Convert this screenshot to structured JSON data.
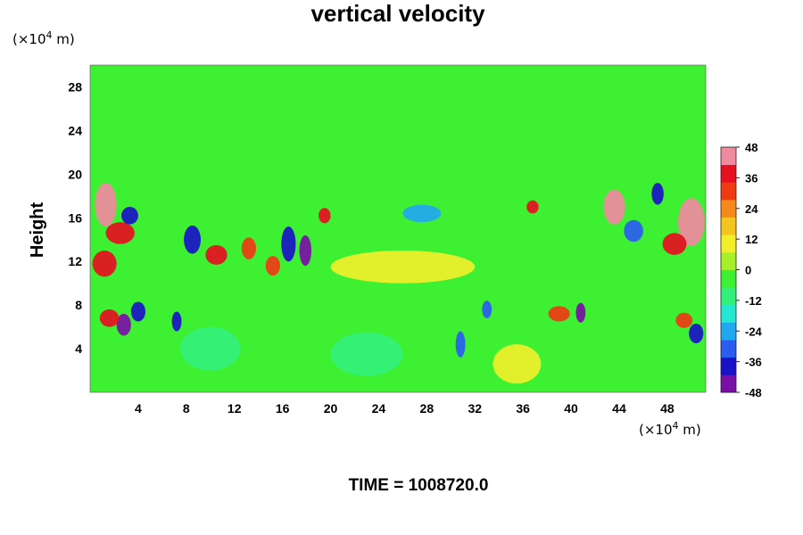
{
  "chart_data": {
    "type": "heatmap",
    "title": "vertical velocity",
    "xlabel": "",
    "ylabel": "Height",
    "x_unit": {
      "prefix": "(×10",
      "exp": "4",
      "suffix": " m)"
    },
    "y_unit": {
      "prefix": "(×10",
      "exp": "4",
      "suffix": " m)"
    },
    "xlim": [
      0,
      51.2
    ],
    "ylim": [
      0,
      30
    ],
    "x_ticks": [
      4,
      8,
      12,
      16,
      20,
      24,
      28,
      32,
      36,
      40,
      44,
      48
    ],
    "y_ticks": [
      4,
      8,
      12,
      16,
      20,
      24,
      28
    ],
    "colorbar": {
      "range": [
        -48,
        48
      ],
      "ticks": [
        48,
        36,
        24,
        12,
        0,
        -12,
        -24,
        -36,
        -48
      ],
      "colors": [
        "#7a0fa6",
        "#1a12c8",
        "#2a5cf0",
        "#1fa8f0",
        "#25e6d2",
        "#33f07a",
        "#3ef032",
        "#a6f02a",
        "#f0ef2a",
        "#f5c51f",
        "#f58a1a",
        "#f03a14",
        "#e60f1f",
        "#f08a9e"
      ]
    },
    "features": [
      {
        "x": 1.3,
        "y": 17.2,
        "value": 46,
        "rx": 0.9,
        "ry": 2.0
      },
      {
        "x": 2.5,
        "y": 14.6,
        "value": 40,
        "rx": 1.2,
        "ry": 1.0
      },
      {
        "x": 1.2,
        "y": 11.8,
        "value": 36,
        "rx": 1.0,
        "ry": 1.2
      },
      {
        "x": 2.8,
        "y": 6.2,
        "value": -48,
        "rx": 0.6,
        "ry": 1.0
      },
      {
        "x": 1.6,
        "y": 6.8,
        "value": 38,
        "rx": 0.8,
        "ry": 0.8
      },
      {
        "x": 3.3,
        "y": 16.2,
        "value": -40,
        "rx": 0.7,
        "ry": 0.8
      },
      {
        "x": 4.0,
        "y": 7.4,
        "value": -36,
        "rx": 0.6,
        "ry": 0.9
      },
      {
        "x": 8.5,
        "y": 14.0,
        "value": -40,
        "rx": 0.7,
        "ry": 1.3
      },
      {
        "x": 7.2,
        "y": 6.5,
        "value": -40,
        "rx": 0.4,
        "ry": 0.9
      },
      {
        "x": 10.5,
        "y": 12.6,
        "value": 36,
        "rx": 0.9,
        "ry": 0.9
      },
      {
        "x": 13.2,
        "y": 13.2,
        "value": 30,
        "rx": 0.6,
        "ry": 1.0
      },
      {
        "x": 16.5,
        "y": 13.6,
        "value": -36,
        "rx": 0.6,
        "ry": 1.6
      },
      {
        "x": 17.9,
        "y": 13.0,
        "value": -48,
        "rx": 0.5,
        "ry": 1.4
      },
      {
        "x": 15.2,
        "y": 11.6,
        "value": 30,
        "rx": 0.6,
        "ry": 0.9
      },
      {
        "x": 19.5,
        "y": 16.2,
        "value": 36,
        "rx": 0.5,
        "ry": 0.7
      },
      {
        "x": 27.6,
        "y": 16.4,
        "value": -26,
        "rx": 1.6,
        "ry": 0.8
      },
      {
        "x": 30.8,
        "y": 4.4,
        "value": -34,
        "rx": 0.4,
        "ry": 1.2
      },
      {
        "x": 33.0,
        "y": 7.6,
        "value": -30,
        "rx": 0.4,
        "ry": 0.8
      },
      {
        "x": 36.8,
        "y": 17.0,
        "value": 36,
        "rx": 0.5,
        "ry": 0.6
      },
      {
        "x": 40.8,
        "y": 7.3,
        "value": -48,
        "rx": 0.4,
        "ry": 0.9
      },
      {
        "x": 39.0,
        "y": 7.2,
        "value": 34,
        "rx": 0.9,
        "ry": 0.7
      },
      {
        "x": 43.6,
        "y": 17.0,
        "value": 42,
        "rx": 0.9,
        "ry": 1.6
      },
      {
        "x": 45.2,
        "y": 14.8,
        "value": -34,
        "rx": 0.8,
        "ry": 1.0
      },
      {
        "x": 47.2,
        "y": 18.2,
        "value": -40,
        "rx": 0.5,
        "ry": 1.0
      },
      {
        "x": 50.0,
        "y": 15.6,
        "value": 46,
        "rx": 1.1,
        "ry": 2.2
      },
      {
        "x": 48.6,
        "y": 13.6,
        "value": 38,
        "rx": 1.0,
        "ry": 1.0
      },
      {
        "x": 50.4,
        "y": 5.4,
        "value": -40,
        "rx": 0.6,
        "ry": 0.9
      },
      {
        "x": 49.4,
        "y": 6.6,
        "value": 32,
        "rx": 0.7,
        "ry": 0.7
      },
      {
        "x": 23.0,
        "y": 3.5,
        "value": -10,
        "rx": 3.0,
        "ry": 2.0
      },
      {
        "x": 35.5,
        "y": 2.6,
        "value": 9,
        "rx": 2.0,
        "ry": 1.8
      },
      {
        "x": 10.0,
        "y": 4.0,
        "value": -8,
        "rx": 2.5,
        "ry": 2.0
      },
      {
        "x": 44.0,
        "y": 4.5,
        "value": -6,
        "rx": 3.0,
        "ry": 2.5
      },
      {
        "x": 26.0,
        "y": 11.5,
        "value": 8,
        "rx": 6.0,
        "ry": 1.5
      },
      {
        "x": 6.0,
        "y": 25.0,
        "value": -4,
        "rx": 8.0,
        "ry": 3.0
      }
    ]
  },
  "footer": {
    "time_label": "TIME = 1008720.0"
  }
}
